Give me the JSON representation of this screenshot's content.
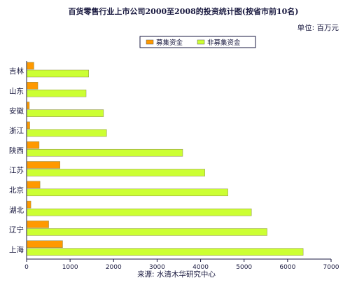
{
  "chart_data": {
    "type": "bar",
    "orientation": "horizontal",
    "title": "百货零售行业上市公司2000至2008的投资统计图(按省市前10名)",
    "unit_label": "单位: 百万元",
    "source": "来源: 水清木华研究中心",
    "categories": [
      "吉林",
      "山东",
      "安徽",
      "浙江",
      "陕西",
      "江苏",
      "北京",
      "湖北",
      "辽宁",
      "上海"
    ],
    "series": [
      {
        "name": "募集资金",
        "color": "#ff9900",
        "values": [
          160,
          250,
          55,
          65,
          280,
          760,
          300,
          90,
          500,
          820
        ]
      },
      {
        "name": "非募集资金",
        "color": "#ccff33",
        "values": [
          1420,
          1360,
          1760,
          1830,
          3580,
          4090,
          4620,
          5160,
          5520,
          6350
        ]
      }
    ],
    "xlim": [
      0,
      7000
    ],
    "xticks": [
      "0",
      "1000",
      "2000",
      "3000",
      "4000",
      "5000",
      "6000",
      "7000"
    ],
    "legend_position": "top-center",
    "grid": false
  }
}
